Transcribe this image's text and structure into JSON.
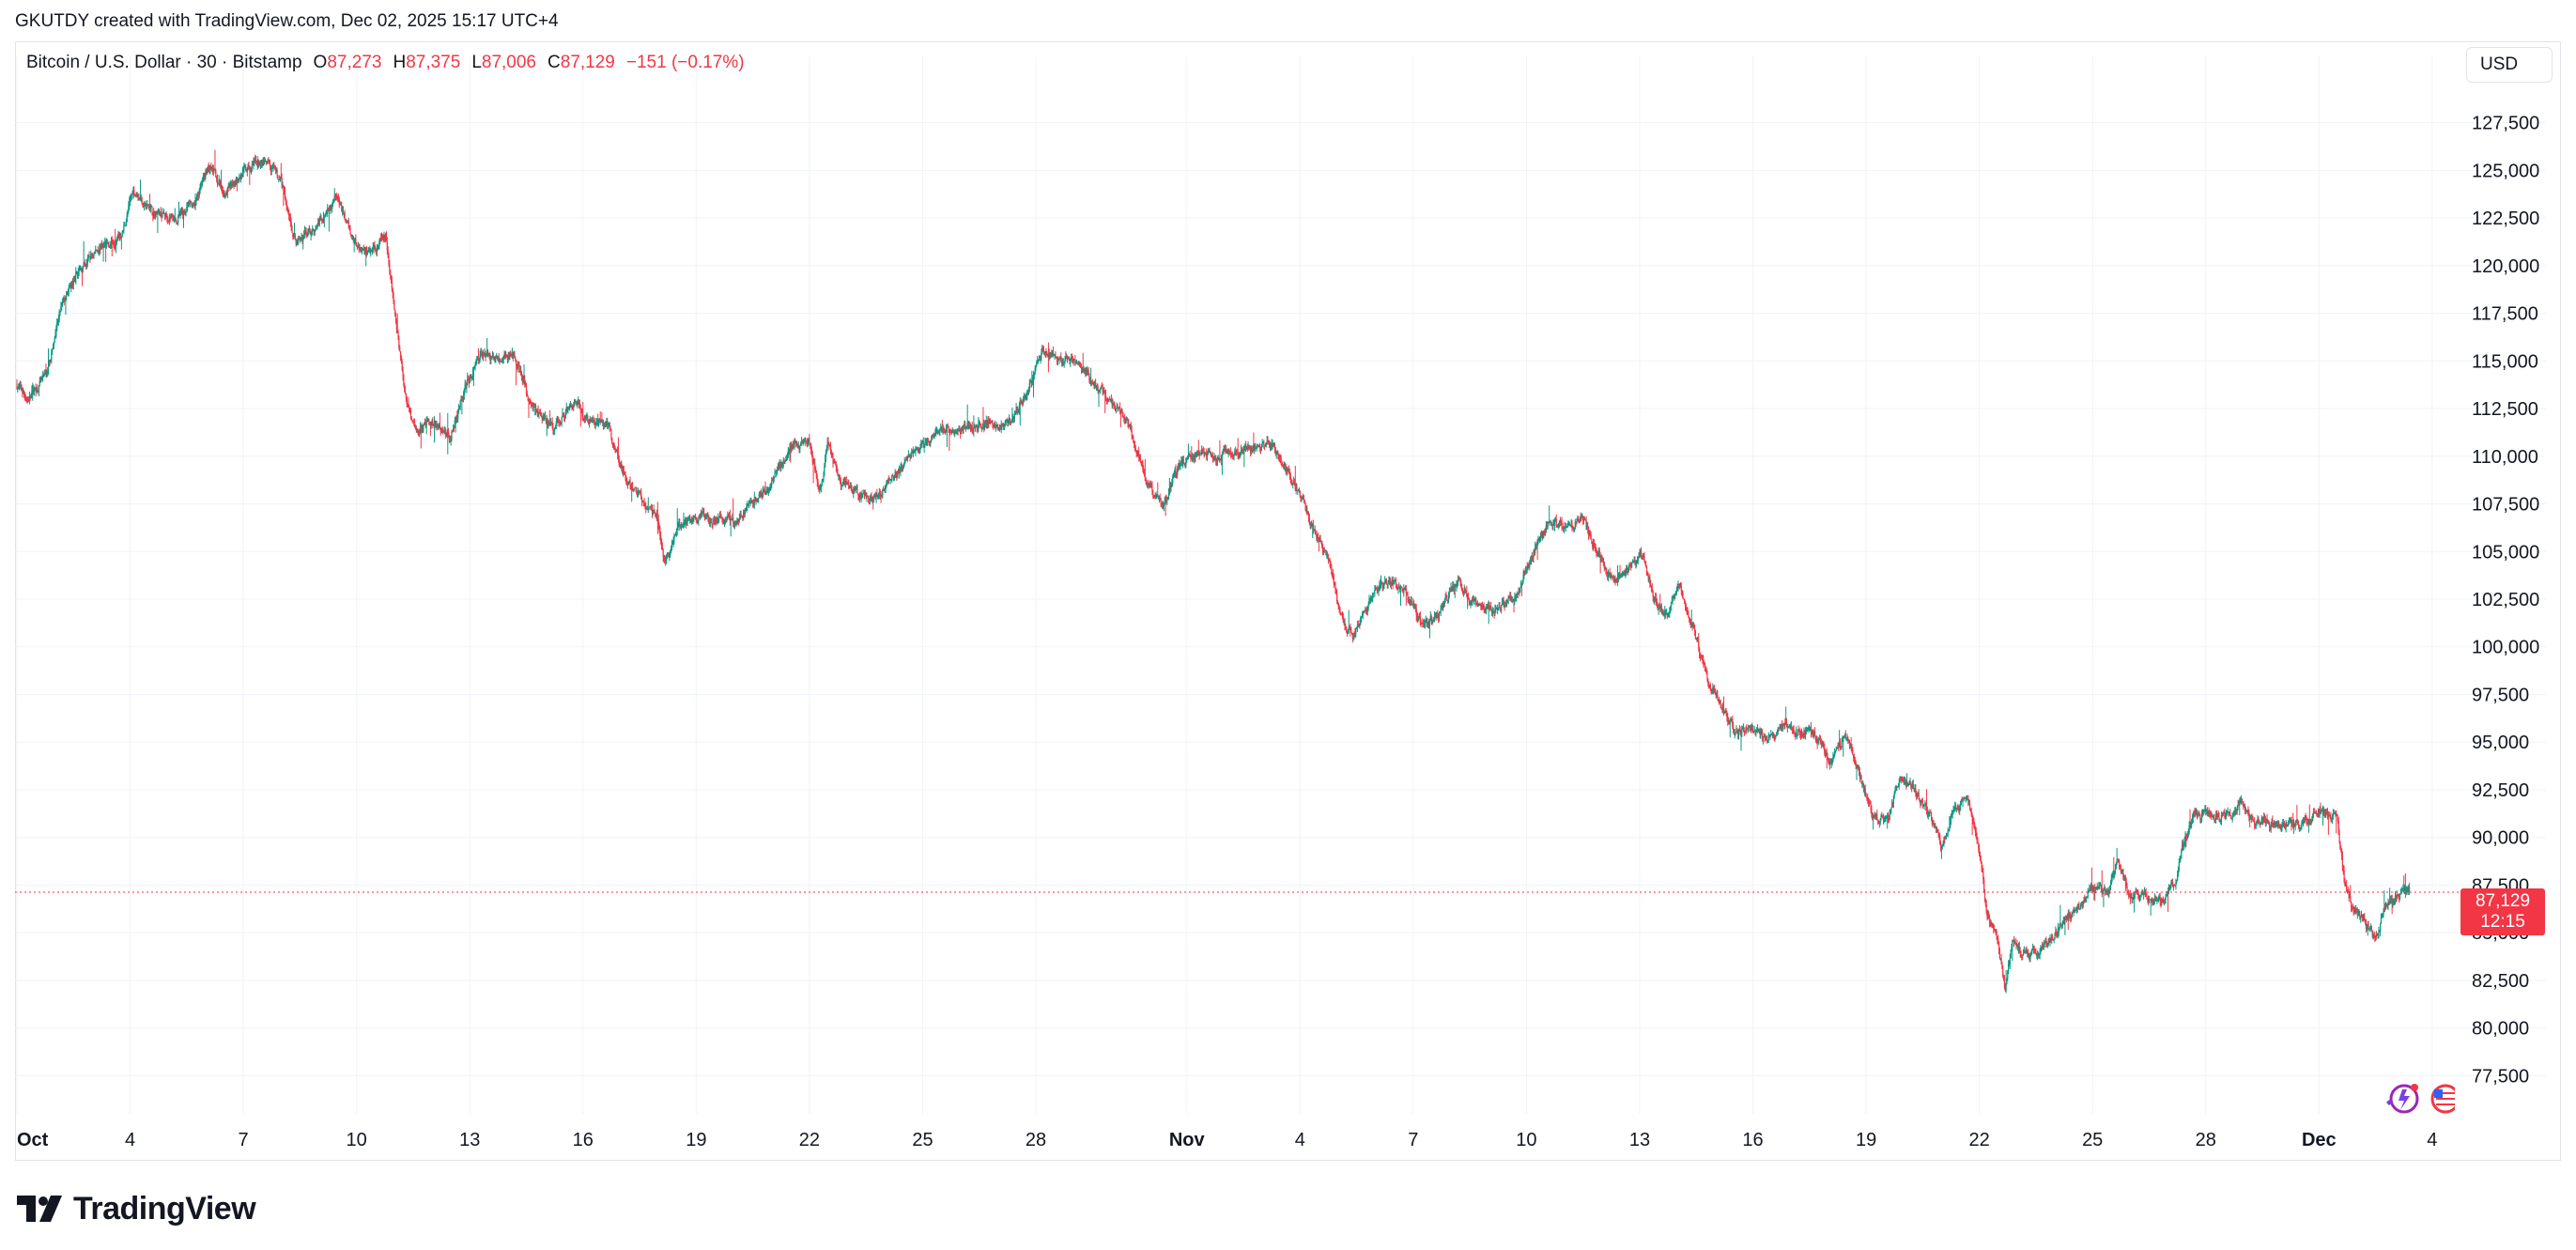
{
  "attribution": "GKUTDY created with TradingView.com, Dec 02, 2025 15:17 UTC+4",
  "legend": {
    "symbol": "Bitcoin / U.S. Dollar · 30 · Bitstamp",
    "open_label": "O",
    "open_value": "87,273",
    "high_label": "H",
    "high_value": "87,375",
    "low_label": "L",
    "low_value": "87,006",
    "close_label": "C",
    "close_value": "87,129",
    "change": "−151 (−0.17%)"
  },
  "currency": "USD",
  "price_tag": {
    "price": "87,129",
    "countdown": "12:15"
  },
  "logo": {
    "text": "TradingView",
    "icon": "tradingview-logo-icon"
  },
  "colors": {
    "up": "#089981",
    "down": "#f23645",
    "grid": "#f0f3fa",
    "text": "#131722",
    "price_line": "#f23645"
  },
  "chart_data": {
    "type": "candlestick",
    "title": "Bitcoin / U.S. Dollar · 30 · Bitstamp",
    "xlabel": "",
    "ylabel": "USD",
    "ylim": [
      75500,
      129500
    ],
    "y_ticks": [
      77500,
      80000,
      82500,
      85000,
      87500,
      90000,
      92500,
      95000,
      97500,
      100000,
      102500,
      105000,
      107500,
      110000,
      112500,
      115000,
      117500,
      120000,
      122500,
      125000,
      127500
    ],
    "y_tick_labels": [
      "77,500",
      "80,000",
      "82,500",
      "85,000",
      "87,500",
      "90,000",
      "92,500",
      "95,000",
      "97,500",
      "100,000",
      "102,500",
      "105,000",
      "107,500",
      "110,000",
      "112,500",
      "115,000",
      "117,500",
      "120,000",
      "122,500",
      "125,000",
      "127,500"
    ],
    "x_range_days": [
      -0.05,
      64.7
    ],
    "x_ticks": [
      {
        "day": 0,
        "label": "Oct",
        "bold": true
      },
      {
        "day": 3,
        "label": "4"
      },
      {
        "day": 6,
        "label": "7"
      },
      {
        "day": 9,
        "label": "10"
      },
      {
        "day": 12,
        "label": "13"
      },
      {
        "day": 15,
        "label": "16"
      },
      {
        "day": 18,
        "label": "19"
      },
      {
        "day": 21,
        "label": "22"
      },
      {
        "day": 24,
        "label": "25"
      },
      {
        "day": 27,
        "label": "28"
      },
      {
        "day": 31,
        "label": "Nov",
        "bold": true
      },
      {
        "day": 34,
        "label": "4"
      },
      {
        "day": 37,
        "label": "7"
      },
      {
        "day": 40,
        "label": "10"
      },
      {
        "day": 43,
        "label": "13"
      },
      {
        "day": 46,
        "label": "16"
      },
      {
        "day": 49,
        "label": "19"
      },
      {
        "day": 52,
        "label": "22"
      },
      {
        "day": 55,
        "label": "25"
      },
      {
        "day": 58,
        "label": "28"
      },
      {
        "day": 61,
        "label": "Dec",
        "bold": true
      },
      {
        "day": 64,
        "label": "4"
      }
    ],
    "last_price": 87129,
    "price_path": [
      [
        0.0,
        113800
      ],
      [
        0.3,
        113000
      ],
      [
        0.8,
        114200
      ],
      [
        1.2,
        117800
      ],
      [
        1.6,
        119500
      ],
      [
        2.2,
        121000
      ],
      [
        2.8,
        121500
      ],
      [
        3.1,
        124000
      ],
      [
        3.6,
        122800
      ],
      [
        4.3,
        122500
      ],
      [
        4.8,
        123500
      ],
      [
        5.1,
        125300
      ],
      [
        5.5,
        124000
      ],
      [
        6.0,
        124800
      ],
      [
        6.5,
        125500
      ],
      [
        7.0,
        124500
      ],
      [
        7.4,
        121200
      ],
      [
        7.9,
        122000
      ],
      [
        8.5,
        123500
      ],
      [
        8.9,
        121500
      ],
      [
        9.3,
        120600
      ],
      [
        9.8,
        121500
      ],
      [
        10.0,
        118000
      ],
      [
        10.3,
        113500
      ],
      [
        10.6,
        111200
      ],
      [
        11.0,
        111800
      ],
      [
        11.5,
        111000
      ],
      [
        11.9,
        113500
      ],
      [
        12.3,
        115500
      ],
      [
        12.8,
        115000
      ],
      [
        13.2,
        115400
      ],
      [
        13.6,
        112800
      ],
      [
        14.2,
        111400
      ],
      [
        14.8,
        113000
      ],
      [
        15.2,
        111800
      ],
      [
        15.7,
        111500
      ],
      [
        16.2,
        108500
      ],
      [
        16.6,
        107800
      ],
      [
        17.0,
        106800
      ],
      [
        17.2,
        104300
      ],
      [
        17.6,
        106500
      ],
      [
        18.0,
        106800
      ],
      [
        18.5,
        106800
      ],
      [
        19.0,
        106500
      ],
      [
        19.5,
        107500
      ],
      [
        20.0,
        108500
      ],
      [
        20.5,
        110500
      ],
      [
        21.0,
        110800
      ],
      [
        21.3,
        108200
      ],
      [
        21.5,
        110500
      ],
      [
        21.8,
        108800
      ],
      [
        22.3,
        108000
      ],
      [
        22.7,
        107800
      ],
      [
        23.1,
        108500
      ],
      [
        23.6,
        109800
      ],
      [
        24.2,
        110800
      ],
      [
        24.8,
        111500
      ],
      [
        25.3,
        111500
      ],
      [
        25.8,
        111800
      ],
      [
        26.3,
        111600
      ],
      [
        26.8,
        113500
      ],
      [
        27.2,
        115500
      ],
      [
        27.6,
        115200
      ],
      [
        28.1,
        114800
      ],
      [
        28.5,
        114000
      ],
      [
        28.9,
        113000
      ],
      [
        29.3,
        112400
      ],
      [
        29.6,
        111000
      ],
      [
        30.0,
        108500
      ],
      [
        30.4,
        107500
      ],
      [
        30.8,
        109500
      ],
      [
        31.3,
        110200
      ],
      [
        31.8,
        110000
      ],
      [
        32.3,
        110200
      ],
      [
        32.8,
        110600
      ],
      [
        33.3,
        110500
      ],
      [
        33.7,
        109200
      ],
      [
        34.0,
        108000
      ],
      [
        34.4,
        106000
      ],
      [
        34.8,
        104400
      ],
      [
        35.1,
        101500
      ],
      [
        35.4,
        100500
      ],
      [
        35.9,
        102500
      ],
      [
        36.4,
        103400
      ],
      [
        36.8,
        102800
      ],
      [
        37.3,
        101000
      ],
      [
        37.7,
        101800
      ],
      [
        38.2,
        103500
      ],
      [
        38.7,
        102200
      ],
      [
        39.2,
        102000
      ],
      [
        39.7,
        102400
      ],
      [
        40.1,
        104500
      ],
      [
        40.6,
        106500
      ],
      [
        41.1,
        106200
      ],
      [
        41.5,
        106800
      ],
      [
        41.8,
        105400
      ],
      [
        42.3,
        103500
      ],
      [
        42.7,
        104000
      ],
      [
        43.1,
        104900
      ],
      [
        43.5,
        102000
      ],
      [
        43.8,
        101800
      ],
      [
        44.1,
        103200
      ],
      [
        44.5,
        100500
      ],
      [
        44.8,
        98400
      ],
      [
        45.2,
        96800
      ],
      [
        45.6,
        95500
      ],
      [
        45.9,
        95800
      ],
      [
        46.4,
        95200
      ],
      [
        46.8,
        95800
      ],
      [
        47.3,
        95600
      ],
      [
        47.8,
        95200
      ],
      [
        48.1,
        93900
      ],
      [
        48.5,
        95300
      ],
      [
        48.9,
        93000
      ],
      [
        49.2,
        91000
      ],
      [
        49.6,
        90800
      ],
      [
        49.9,
        93200
      ],
      [
        50.3,
        92600
      ],
      [
        50.7,
        91200
      ],
      [
        51.0,
        89500
      ],
      [
        51.3,
        91200
      ],
      [
        51.7,
        92100
      ],
      [
        52.0,
        89600
      ],
      [
        52.2,
        86300
      ],
      [
        52.5,
        84700
      ],
      [
        52.7,
        82200
      ],
      [
        52.9,
        84500
      ],
      [
        53.2,
        83800
      ],
      [
        53.6,
        84100
      ],
      [
        54.0,
        84800
      ],
      [
        54.4,
        85800
      ],
      [
        54.7,
        86400
      ],
      [
        55.0,
        87400
      ],
      [
        55.4,
        87000
      ],
      [
        55.7,
        88800
      ],
      [
        56.0,
        86900
      ],
      [
        56.4,
        87200
      ],
      [
        56.8,
        86700
      ],
      [
        57.2,
        87600
      ],
      [
        57.4,
        89400
      ],
      [
        57.7,
        91200
      ],
      [
        58.2,
        91200
      ],
      [
        58.6,
        91000
      ],
      [
        59.0,
        91700
      ],
      [
        59.3,
        90900
      ],
      [
        59.8,
        90800
      ],
      [
        60.3,
        90600
      ],
      [
        60.8,
        91000
      ],
      [
        61.1,
        91500
      ],
      [
        61.5,
        91000
      ],
      [
        61.7,
        87600
      ],
      [
        61.9,
        86300
      ],
      [
        62.2,
        85600
      ],
      [
        62.5,
        84700
      ],
      [
        62.8,
        86300
      ],
      [
        63.2,
        87100
      ],
      [
        63.4,
        87129
      ]
    ]
  }
}
